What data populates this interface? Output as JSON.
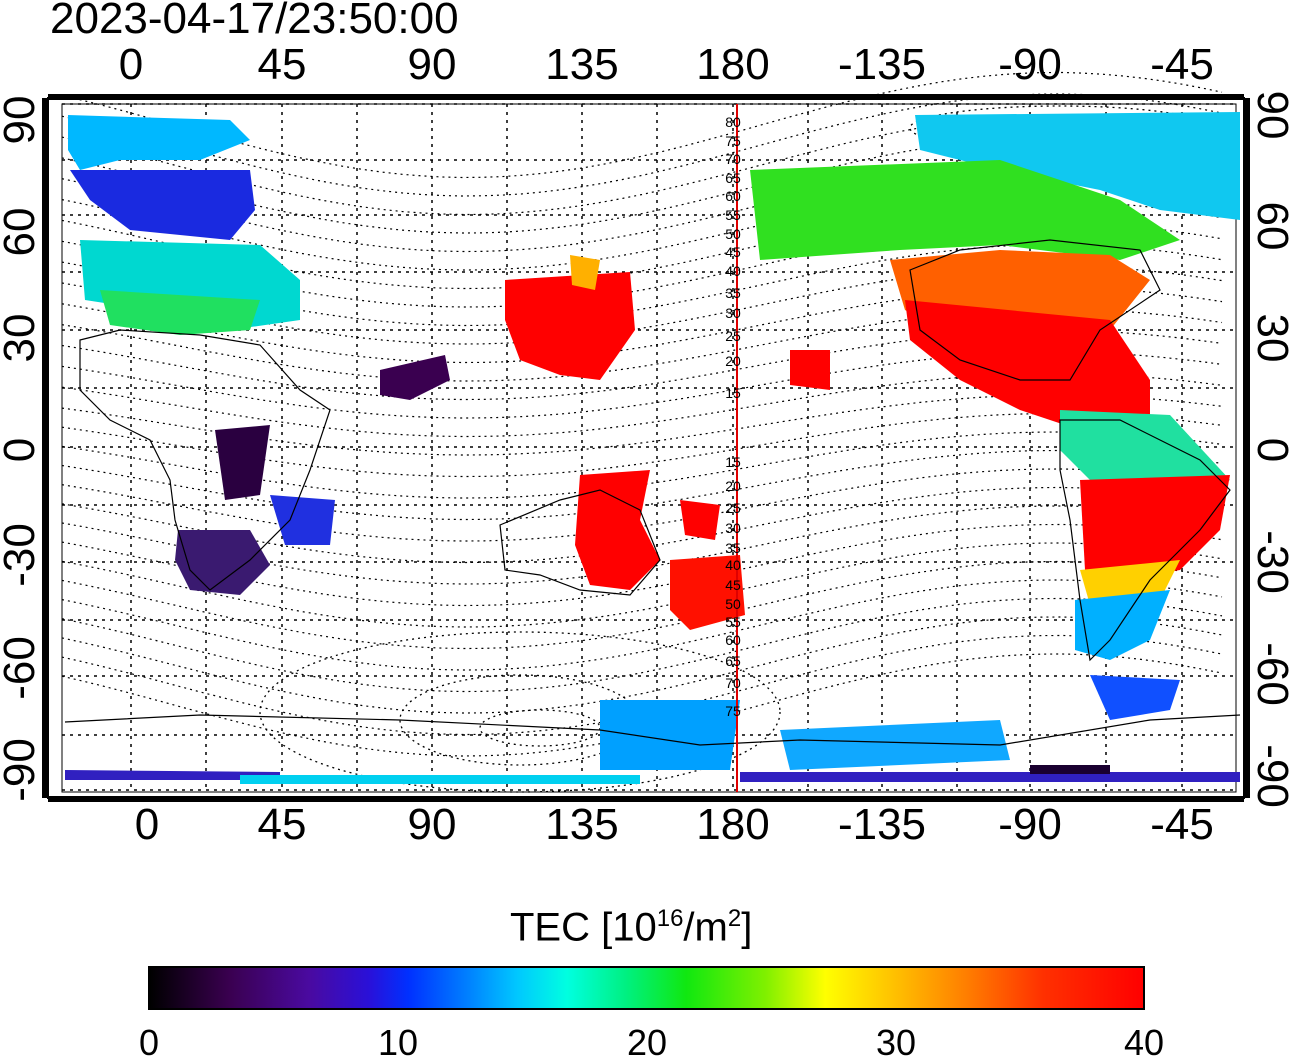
{
  "timestamp": "2023-04-17/23:50:00",
  "top_lon_labels": [
    "0",
    "45",
    "90",
    "135",
    "180",
    "-135",
    "-90",
    "-45"
  ],
  "bottom_lon_labels": [
    "0",
    "45",
    "90",
    "135",
    "180",
    "-135",
    "-90",
    "-45"
  ],
  "left_lat_labels": [
    "90",
    "60",
    "30",
    "0",
    "-30",
    "-60",
    "-90"
  ],
  "right_lat_labels": [
    "90",
    "60",
    "30",
    "0",
    "-30",
    "-60",
    "-90"
  ],
  "mlat_north_labels": [
    "80",
    "75",
    "70",
    "65",
    "60",
    "55",
    "50",
    "45",
    "40",
    "35",
    "30",
    "25",
    "20",
    "15"
  ],
  "mlat_south_labels": [
    "15",
    "20",
    "25",
    "30",
    "35",
    "40",
    "45",
    "50",
    "55",
    "60",
    "65",
    "70",
    "75"
  ],
  "colorbar": {
    "title_main": "TEC  [10",
    "title_exp1": "16",
    "title_mid": "/m",
    "title_exp2": "2",
    "title_end": "]",
    "ticks": [
      "0",
      "10",
      "20",
      "30",
      "40"
    ],
    "min": 0,
    "max": 40
  },
  "colors": {
    "terminator_line": "#e00000",
    "high_tec": "#ff0000",
    "low_tec": "#3a0050"
  }
}
